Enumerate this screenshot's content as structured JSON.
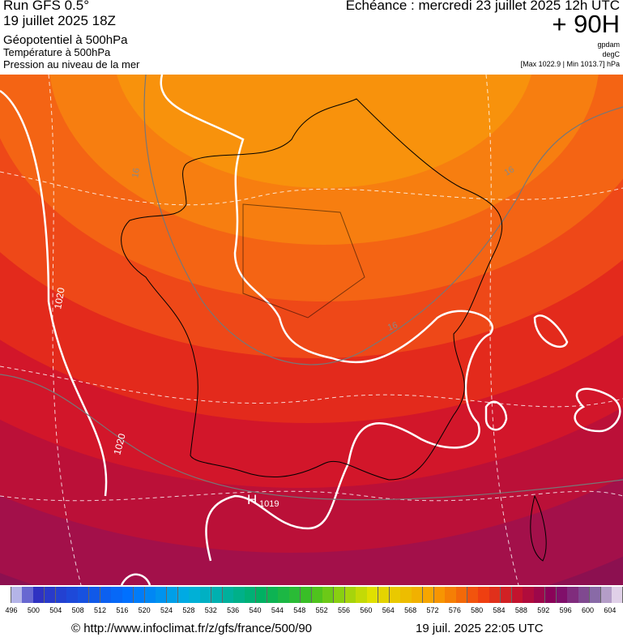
{
  "header": {
    "run": "Run GFS 0.5°",
    "run_date": "19 juillet 2025 18Z",
    "field1": "Géopotentiel à 500hPa",
    "field2": "Température à 500hPa",
    "field3": "Pression au niveau de la mer",
    "valid": "Echéance : mercredi 23 juillet 2025 12h UTC",
    "lead": "+ 90H",
    "unit1": "gpdam",
    "unit2": "degC",
    "range": "[Max 1022.9 | Min 1013.7] hPa"
  },
  "map": {
    "labels": [
      "1020",
      "1020",
      "16",
      "16",
      "16",
      "H",
      "1019"
    ]
  },
  "colorbar": {
    "labels": [
      496,
      500,
      504,
      508,
      512,
      516,
      520,
      524,
      528,
      532,
      536,
      540,
      544,
      548,
      552,
      556,
      560,
      564,
      568,
      572,
      576,
      580,
      584,
      588,
      592,
      596,
      600,
      604
    ]
  },
  "footer": {
    "source": "© http://www.infoclimat.fr/z/gfs/france/500/90",
    "timestamp": "19 juil. 2025 22:05 UTC"
  }
}
